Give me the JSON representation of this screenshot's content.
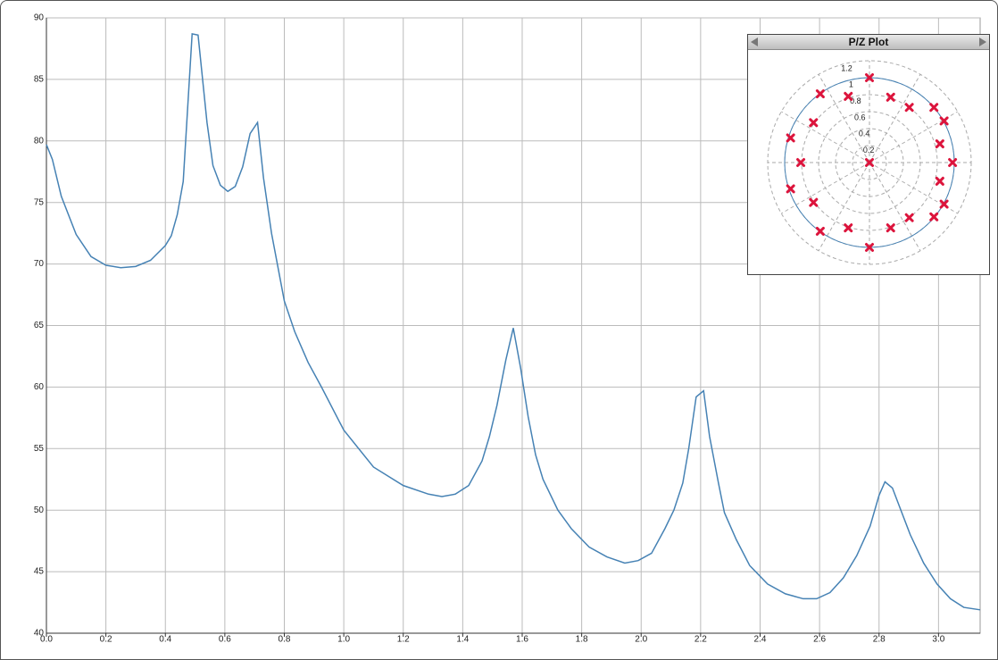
{
  "chart_data": [
    {
      "type": "line",
      "x": [
        0,
        0.02,
        0.05,
        0.1,
        0.15,
        0.2,
        0.25,
        0.3,
        0.35,
        0.4,
        0.42,
        0.44,
        0.46,
        0.49,
        0.51,
        0.54,
        0.56,
        0.585,
        0.61,
        0.635,
        0.66,
        0.685,
        0.71,
        0.73,
        0.757,
        0.8,
        0.835,
        0.88,
        0.925,
        1.0,
        1.1,
        1.2,
        1.285,
        1.33,
        1.375,
        1.42,
        1.465,
        1.49,
        1.515,
        1.545,
        1.57,
        1.595,
        1.62,
        1.645,
        1.67,
        1.72,
        1.765,
        1.825,
        1.885,
        1.945,
        1.99,
        2.035,
        2.08,
        2.11,
        2.14,
        2.16,
        2.185,
        2.21,
        2.23,
        2.26,
        2.28,
        2.32,
        2.365,
        2.425,
        2.485,
        2.545,
        2.59,
        2.635,
        2.68,
        2.725,
        2.77,
        2.8,
        2.82,
        2.845,
        2.875,
        2.905,
        2.95,
        2.995,
        3.04,
        3.085,
        3.14
      ],
      "values": [
        79.7,
        78.5,
        75.5,
        72.4,
        70.6,
        69.9,
        69.7,
        69.8,
        70.3,
        71.5,
        72.3,
        74.0,
        76.7,
        88.7,
        88.6,
        81.5,
        78.0,
        76.4,
        75.9,
        76.3,
        77.9,
        80.6,
        81.5,
        77.0,
        72.5,
        67.0,
        64.5,
        62.0,
        60.0,
        56.5,
        53.5,
        52.0,
        51.3,
        51.1,
        51.3,
        52.0,
        54.0,
        56.0,
        58.5,
        62.2,
        64.8,
        61.5,
        57.6,
        54.5,
        52.5,
        50.0,
        48.5,
        47.0,
        46.2,
        45.7,
        45.9,
        46.5,
        48.5,
        50.0,
        52.2,
        55.0,
        59.2,
        59.7,
        56.0,
        52.2,
        49.8,
        47.6,
        45.5,
        44.0,
        43.2,
        42.8,
        42.8,
        43.3,
        44.5,
        46.3,
        48.7,
        51.2,
        52.3,
        51.8,
        49.9,
        48.0,
        45.7,
        44.0,
        42.8,
        42.1,
        41.9
      ],
      "color": "#4682b4",
      "xlim": [
        0,
        3.14
      ],
      "ylim": [
        40,
        90
      ],
      "xticks": [
        {
          "value": 0,
          "label": "0.0"
        },
        0.2,
        0.4,
        0.6,
        0.8,
        {
          "value": 1,
          "label": "1.0"
        },
        1.2,
        1.4,
        1.6,
        1.8,
        {
          "value": 2,
          "label": "2.0"
        },
        2.2,
        2.4,
        2.6,
        2.8,
        {
          "value": 3,
          "label": "3.0"
        }
      ],
      "yticks": [
        40,
        45,
        50,
        55,
        60,
        65,
        70,
        75,
        80,
        85,
        90
      ],
      "grid": true
    },
    {
      "type": "polar-scatter",
      "title": "P/Z Plot",
      "x": [
        0,
        0,
        0,
        -0.58,
        -0.25,
        0.25,
        0.47,
        0.76,
        -0.66,
        0.88,
        -0.93,
        0.83,
        -0.81,
        0.98,
        -0.93,
        0.83,
        -0.66,
        0.88,
        -0.58,
        -0.25,
        0.25,
        0.47,
        0.76
      ],
      "y": [
        1.0,
        0,
        -1.0,
        0.81,
        0.78,
        0.77,
        0.65,
        0.65,
        0.47,
        0.49,
        0.29,
        0.22,
        0,
        0,
        -0.31,
        -0.22,
        -0.47,
        -0.49,
        -0.81,
        -0.77,
        -0.77,
        -0.65,
        -0.64
      ],
      "color": "#dc143c",
      "rlim": [
        0,
        1.2
      ],
      "rticks": [
        0.2,
        0.4,
        0.6,
        0.8,
        1,
        1.2
      ],
      "unit_circle": true,
      "unit_circle_color": "#4682b4",
      "grid": true
    }
  ]
}
